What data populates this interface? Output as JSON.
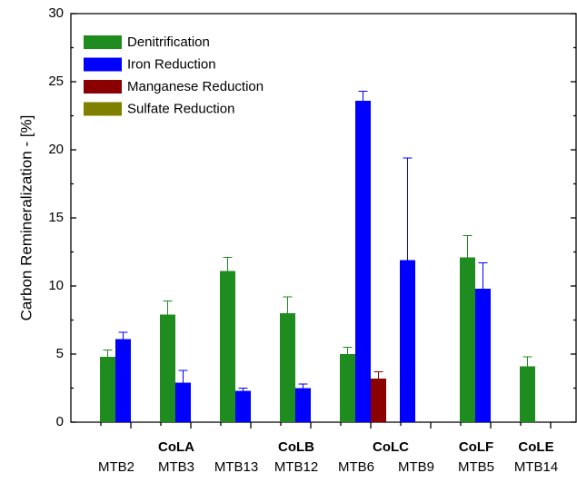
{
  "chart_data": {
    "type": "bar",
    "y_label": "Carbon Remineralization - [%]",
    "categories": [
      "MTB2",
      "MTB3",
      "MTB13",
      "MTB12",
      "MTB6",
      "MTB9",
      "MTB5",
      "MTB14"
    ],
    "group_labels": [
      null,
      "CoLA",
      null,
      "CoLB",
      "CoLC",
      null,
      "CoLF",
      "CoLE"
    ],
    "series": [
      {
        "name": "Denitrification",
        "color": "#1e8c1e",
        "values": [
          4.8,
          7.9,
          11.1,
          8.0,
          5.0,
          null,
          12.1,
          4.1
        ],
        "errors": [
          0.5,
          1.0,
          1.0,
          1.2,
          0.5,
          null,
          1.6,
          0.7
        ]
      },
      {
        "name": "Iron Reduction",
        "color": "#0000ff",
        "values": [
          6.1,
          2.9,
          2.3,
          2.5,
          23.6,
          11.9,
          9.8,
          null
        ],
        "errors": [
          0.5,
          0.9,
          0.2,
          0.3,
          0.7,
          7.5,
          1.9,
          null
        ]
      },
      {
        "name": "Manganese Reduction",
        "color": "#8b0000",
        "values": [
          null,
          null,
          null,
          null,
          3.2,
          null,
          null,
          null
        ],
        "errors": [
          null,
          null,
          null,
          null,
          0.5,
          null,
          null,
          null
        ]
      },
      {
        "name": "Sulfate Reduction",
        "color": "#808000",
        "values": [
          null,
          null,
          null,
          null,
          null,
          null,
          null,
          null
        ],
        "errors": [
          null,
          null,
          null,
          null,
          null,
          null,
          null,
          null
        ]
      }
    ],
    "ylim": [
      0,
      30
    ],
    "yticks": [
      0,
      5,
      10,
      15,
      20,
      25,
      30
    ],
    "legend": "upper left"
  }
}
